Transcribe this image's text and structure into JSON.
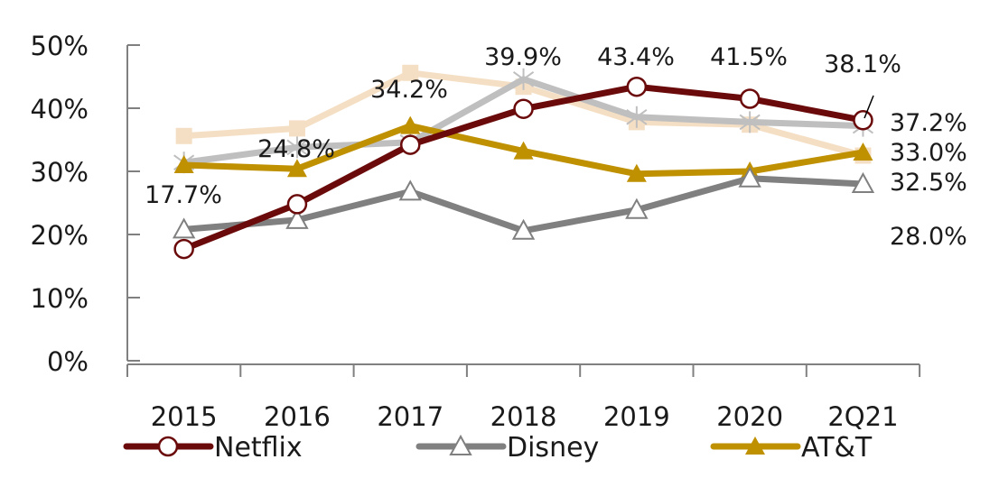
{
  "chart_data": {
    "type": "line",
    "title": "",
    "xlabel": "",
    "ylabel": "",
    "ylim": [
      0,
      50
    ],
    "y_ticks": [
      "0%",
      "10%",
      "20%",
      "30%",
      "40%",
      "50%"
    ],
    "y_tick_values": [
      0,
      10,
      20,
      30,
      40,
      50
    ],
    "categories": [
      "2015",
      "2016",
      "2017",
      "2018",
      "2019",
      "2020",
      "2Q21"
    ],
    "grid": false,
    "legend_position": "bottom",
    "series": [
      {
        "name": "Peach series (unlabeled)",
        "color": "#f5dfc4",
        "marker": "square",
        "in_legend": false,
        "values": [
          35.6,
          36.8,
          45.6,
          43.4,
          37.8,
          37.4,
          32.5
        ]
      },
      {
        "name": "Light grey series (unlabeled)",
        "color": "#bfbfbf",
        "marker": "asterisk",
        "in_legend": false,
        "values": [
          31.4,
          33.8,
          34.6,
          44.6,
          38.6,
          37.8,
          37.2
        ]
      },
      {
        "name": "AT&T",
        "color": "#bf9000",
        "marker": "triangle-filled",
        "in_legend": true,
        "values": [
          31.0,
          30.4,
          37.2,
          33.2,
          29.6,
          30.0,
          33.0
        ]
      },
      {
        "name": "Disney",
        "color": "#808080",
        "marker": "triangle-open",
        "in_legend": true,
        "values": [
          20.8,
          22.3,
          26.8,
          20.6,
          23.9,
          28.9,
          28.0
        ]
      },
      {
        "name": "Netflix",
        "color": "#6b0a0a",
        "marker": "circle-open",
        "in_legend": true,
        "values": [
          17.7,
          24.8,
          34.2,
          39.9,
          43.4,
          41.5,
          38.1
        ]
      }
    ],
    "annotations": [
      {
        "text": "17.7%",
        "series": "Netflix",
        "category": "2015"
      },
      {
        "text": "24.8%",
        "series": "Netflix",
        "category": "2016"
      },
      {
        "text": "34.2%",
        "series": "Netflix",
        "category": "2017"
      },
      {
        "text": "39.9%",
        "series": "Netflix",
        "category": "2018"
      },
      {
        "text": "43.4%",
        "series": "Netflix",
        "category": "2019"
      },
      {
        "text": "41.5%",
        "series": "Netflix",
        "category": "2020"
      },
      {
        "text": "38.1%",
        "series": "Netflix",
        "category": "2Q21"
      },
      {
        "text": "37.2%",
        "series": "Light grey series (unlabeled)",
        "category": "2Q21"
      },
      {
        "text": "33.0%",
        "series": "AT&T",
        "category": "2Q21"
      },
      {
        "text": "32.5%",
        "series": "Peach series (unlabeled)",
        "category": "2Q21"
      },
      {
        "text": "28.0%",
        "series": "Disney",
        "category": "2Q21"
      }
    ],
    "legend": [
      {
        "label": "Netflix",
        "color": "#6b0a0a",
        "marker": "circle-open"
      },
      {
        "label": "Disney",
        "color": "#808080",
        "marker": "triangle-open"
      },
      {
        "label": "AT&T",
        "color": "#bf9000",
        "marker": "triangle-filled"
      }
    ]
  }
}
